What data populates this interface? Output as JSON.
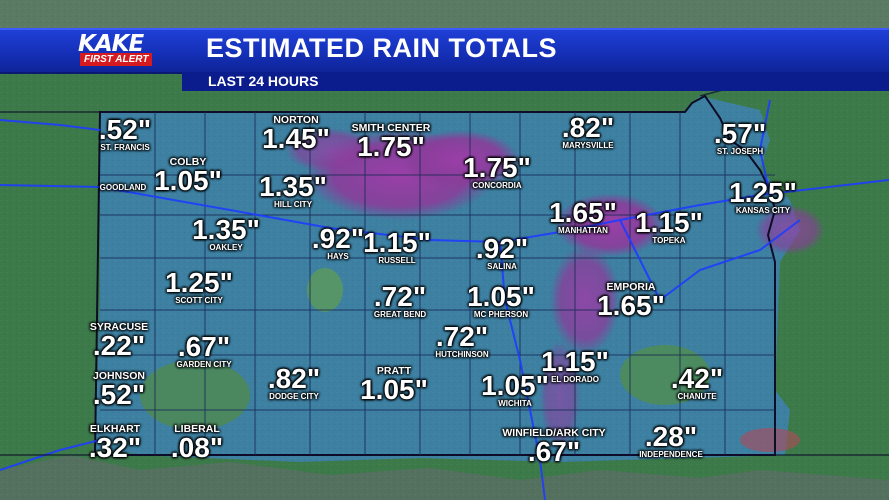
{
  "header": {
    "logo_text": "KAKE",
    "logo_sub": "FIRST ALERT",
    "title": "ESTIMATED RAIN TOTALS",
    "subtitle": "LAST 24 HOURS"
  },
  "colors": {
    "banner_blue": "#1530b8",
    "subbar_navy": "#0b1c8c",
    "logo_red": "#d71920",
    "land_green": "#3c7a4a",
    "rain_blue": "#3a7fa0",
    "heavy_rain_purple": "#8a3d9a"
  },
  "totals": [
    {
      "value": ".52\"",
      "city": "ST. FRANCIS"
    },
    {
      "value": "1.45\"",
      "city": "NORTON"
    },
    {
      "value": "1.75\"",
      "city": "SMITH CENTER"
    },
    {
      "value": ".82\"",
      "city": "MARYSVILLE"
    },
    {
      "value": ".57\"",
      "city": "ST. JOSEPH"
    },
    {
      "value": "1.05\"",
      "city": "COLBY"
    },
    {
      "value": "",
      "city": "GOODLAND"
    },
    {
      "value": "1.35\"",
      "city": "HILL CITY"
    },
    {
      "value": "1.75\"",
      "city": "CONCORDIA"
    },
    {
      "value": "1.25\"",
      "city": "KANSAS CITY"
    },
    {
      "value": "1.35\"",
      "city": "OAKLEY"
    },
    {
      "value": ".92\"",
      "city": "HAYS"
    },
    {
      "value": "1.15\"",
      "city": "RUSSELL"
    },
    {
      "value": ".92\"",
      "city": "SALINA"
    },
    {
      "value": "1.65\"",
      "city": "MANHATTAN"
    },
    {
      "value": "1.15\"",
      "city": "TOPEKA"
    },
    {
      "value": "1.25\"",
      "city": "SCOTT CITY"
    },
    {
      "value": ".72\"",
      "city": "GREAT BEND"
    },
    {
      "value": "1.05\"",
      "city": "MC PHERSON"
    },
    {
      "value": "1.65\"",
      "city": "EMPORIA"
    },
    {
      "value": ".22\"",
      "city": "SYRACUSE"
    },
    {
      "value": ".67\"",
      "city": "GARDEN CITY"
    },
    {
      "value": ".72\"",
      "city": "HUTCHINSON"
    },
    {
      "value": "1.15\"",
      "city": "EL DORADO"
    },
    {
      "value": ".52\"",
      "city": "JOHNSON"
    },
    {
      "value": ".82\"",
      "city": "DODGE CITY"
    },
    {
      "value": "1.05\"",
      "city": "PRATT"
    },
    {
      "value": "1.05\"",
      "city": "WICHITA"
    },
    {
      "value": ".42\"",
      "city": "CHANUTE"
    },
    {
      "value": ".32\"",
      "city": "ELKHART"
    },
    {
      "value": ".08\"",
      "city": "LIBERAL"
    },
    {
      "value": ".67\"",
      "city": "WINFIELD/ARK CITY"
    },
    {
      "value": ".28\"",
      "city": "INDEPENDENCE"
    }
  ]
}
